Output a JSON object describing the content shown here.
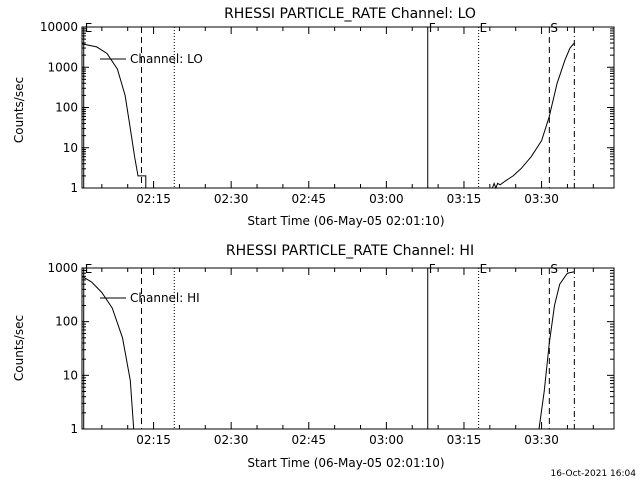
{
  "footer": {
    "timestamp": "16-Oct-2021 16:04"
  },
  "chart_data": [
    {
      "type": "line",
      "title": "RHESSI PARTICLE_RATE Channel: LO",
      "ylabel": "Counts/sec",
      "xlabel": "Start Time (06-May-05 02:01:10)",
      "y_scale": "log",
      "ylim": [
        1,
        10000
      ],
      "y_ticks": [
        {
          "value": 1,
          "label": "1"
        },
        {
          "value": 10,
          "label": "10"
        },
        {
          "value": 100,
          "label": "100"
        },
        {
          "value": 1000,
          "label": "1000"
        },
        {
          "value": 10000,
          "label": "10000"
        }
      ],
      "xlim": [
        "02:01:10",
        "03:44:00"
      ],
      "x_ticks": [
        "02:15",
        "02:30",
        "02:45",
        "03:00",
        "03:15",
        "03:30"
      ],
      "legend": "Channel: LO",
      "markers": [
        {
          "label": "E",
          "time": "02:01:30",
          "style": "solid"
        },
        {
          "label": "",
          "time": "02:12:40",
          "style": "dashed"
        },
        {
          "label": "",
          "time": "02:19:00",
          "style": "dotted"
        },
        {
          "label": "F",
          "time": "03:08:00",
          "style": "solid"
        },
        {
          "label": "E",
          "time": "03:17:50",
          "style": "dotted"
        },
        {
          "label": "S",
          "time": "03:31:30",
          "style": "dashed"
        },
        {
          "label": "",
          "time": "03:36:20",
          "style": "dashdot"
        }
      ],
      "series": [
        {
          "segments": [
            [
              [
                "02:01:10",
                3800
              ],
              [
                "02:04:00",
                3200
              ],
              [
                "02:06:00",
                2200
              ],
              [
                "02:08:00",
                900
              ],
              [
                "02:09:30",
                200
              ],
              [
                "02:10:30",
                30
              ],
              [
                "02:11:20",
                6
              ],
              [
                "02:12:00",
                2
              ],
              [
                "02:13:30",
                2
              ],
              [
                "02:13:30",
                1
              ]
            ],
            [
              [
                "03:20:30",
                1
              ],
              [
                "03:20:50",
                1.3
              ],
              [
                "03:21:10",
                1
              ],
              [
                "03:21:30",
                1.3
              ],
              [
                "03:22:00",
                1.2
              ],
              [
                "03:23:00",
                1.5
              ],
              [
                "03:24:30",
                2
              ],
              [
                "03:26:00",
                3
              ],
              [
                "03:28:00",
                6
              ],
              [
                "03:30:00",
                15
              ],
              [
                "03:31:30",
                60
              ],
              [
                "03:33:00",
                400
              ],
              [
                "03:34:30",
                1500
              ],
              [
                "03:35:30",
                3000
              ],
              [
                "03:36:20",
                4000
              ]
            ]
          ]
        }
      ]
    },
    {
      "type": "line",
      "title": "RHESSI PARTICLE_RATE Channel: HI",
      "ylabel": "Counts/sec",
      "xlabel": "Start Time (06-May-05 02:01:10)",
      "y_scale": "log",
      "ylim": [
        1,
        1000
      ],
      "y_ticks": [
        {
          "value": 1,
          "label": "1"
        },
        {
          "value": 10,
          "label": "10"
        },
        {
          "value": 100,
          "label": "100"
        },
        {
          "value": 1000,
          "label": "1000"
        }
      ],
      "xlim": [
        "02:01:10",
        "03:44:00"
      ],
      "x_ticks": [
        "02:15",
        "02:30",
        "02:45",
        "03:00",
        "03:15",
        "03:30"
      ],
      "legend": "Channel: HI",
      "markers": [
        {
          "label": "E",
          "time": "02:01:30",
          "style": "solid"
        },
        {
          "label": "",
          "time": "02:12:40",
          "style": "dashed"
        },
        {
          "label": "",
          "time": "02:19:00",
          "style": "dotted"
        },
        {
          "label": "F",
          "time": "03:08:00",
          "style": "solid"
        },
        {
          "label": "E",
          "time": "03:17:50",
          "style": "dotted"
        },
        {
          "label": "S",
          "time": "03:31:30",
          "style": "dashed"
        },
        {
          "label": "",
          "time": "03:36:20",
          "style": "dashdot"
        }
      ],
      "series": [
        {
          "segments": [
            [
              [
                "02:01:10",
                700
              ],
              [
                "02:03:00",
                550
              ],
              [
                "02:05:00",
                350
              ],
              [
                "02:07:00",
                180
              ],
              [
                "02:09:00",
                50
              ],
              [
                "02:10:30",
                8
              ],
              [
                "02:11:10",
                1
              ]
            ],
            [
              [
                "03:29:30",
                1
              ],
              [
                "03:30:30",
                5
              ],
              [
                "03:31:30",
                40
              ],
              [
                "03:32:30",
                200
              ],
              [
                "03:33:30",
                500
              ],
              [
                "03:35:00",
                800
              ],
              [
                "03:36:20",
                850
              ]
            ]
          ]
        }
      ]
    }
  ]
}
